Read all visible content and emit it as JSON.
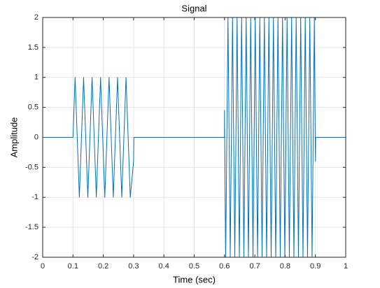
{
  "chart_data": {
    "type": "line",
    "title": "Signal",
    "x_label": "Time (sec)",
    "y_label": "Amplitude",
    "x": [
      0,
      0.1,
      0.107,
      0.121,
      0.135,
      0.149,
      0.163,
      0.177,
      0.191,
      0.205,
      0.219,
      0.233,
      0.247,
      0.261,
      0.275,
      0.289,
      0.3,
      0.301,
      0.6,
      0.6,
      0.604,
      0.6115,
      0.619,
      0.6265,
      0.634,
      0.6415,
      0.649,
      0.6565,
      0.664,
      0.6715,
      0.679,
      0.6865,
      0.694,
      0.7015,
      0.709,
      0.7165,
      0.724,
      0.7315,
      0.739,
      0.7465,
      0.754,
      0.7615,
      0.769,
      0.7765,
      0.784,
      0.7915,
      0.799,
      0.8065,
      0.814,
      0.8215,
      0.829,
      0.8365,
      0.844,
      0.8515,
      0.859,
      0.8665,
      0.874,
      0.8815,
      0.889,
      0.8965,
      0.9,
      0.901,
      1
    ],
    "values": [
      0,
      0,
      1,
      -1,
      1,
      -1,
      1,
      -1,
      1,
      -1,
      1,
      -1,
      1,
      -1,
      1,
      -1,
      -0.4,
      0,
      0,
      0.45,
      -2,
      2,
      -2,
      2,
      -2,
      2,
      -2,
      2,
      -2,
      2,
      -2,
      2,
      -2,
      2,
      -2,
      2,
      -2,
      2,
      -2,
      2,
      -2,
      2,
      -2,
      2,
      -2,
      2,
      -2,
      2,
      -2,
      2,
      -2,
      2,
      -2,
      2,
      -2,
      2,
      -2,
      2,
      -2,
      2,
      -0.4,
      0,
      0
    ],
    "color": "#0072bd",
    "xlim": [
      0,
      1
    ],
    "xticks": [
      0,
      0.1,
      0.2,
      0.3,
      0.4,
      0.5,
      0.6,
      0.7,
      0.8,
      0.9,
      1
    ],
    "ylim": [
      -2,
      2
    ],
    "yticks": [
      -2,
      -1.5,
      -1,
      -0.5,
      0,
      0.5,
      1,
      1.5,
      2
    ],
    "grid": true
  }
}
